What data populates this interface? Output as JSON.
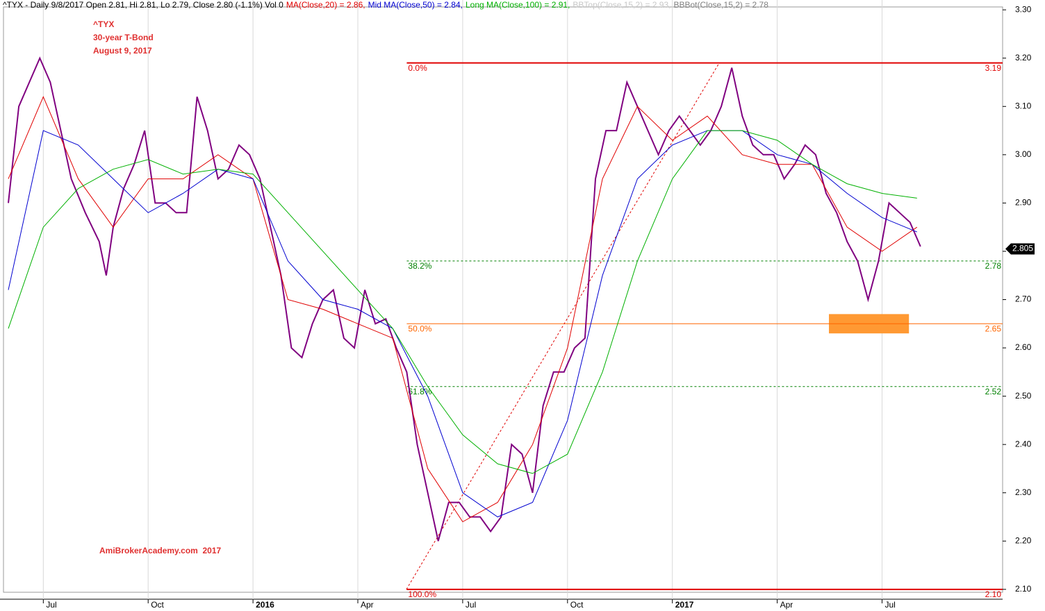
{
  "chart_data": {
    "type": "line",
    "header": [
      {
        "text": "^TYX - Daily 9/8/2017 Open 2.81, Hi 2.81, Lo 2.79, Close 2.80 (-1.1%) Vol 0",
        "color": "#000000"
      },
      {
        "text": "MA(Close,20) = 2.86,",
        "color": "#e00000"
      },
      {
        "text": "Mid MA(Close,50) = 2.84,",
        "color": "#0000d0"
      },
      {
        "text": "Long MA(Close,100) = 2.91,",
        "color": "#00b000"
      },
      {
        "text": "BBTop(Close,15,2) = 2.93,",
        "color": "#c8c8c8"
      },
      {
        "text": "BBBot(Close,15,2) = 2.78",
        "color": "#808080"
      }
    ],
    "annotations": [
      "^TYX",
      "30-year T-Bond",
      "August 9, 2017"
    ],
    "watermark": "AmiBrokerAcademy.com  2017",
    "xlim": [
      -0.14,
      28.45
    ],
    "xticks": [
      {
        "value": 1,
        "label": "Jul"
      },
      {
        "value": 4,
        "label": "Oct"
      },
      {
        "value": 7,
        "label": "2016"
      },
      {
        "value": 10,
        "label": "Apr"
      },
      {
        "value": 13,
        "label": "Jul"
      },
      {
        "value": 16,
        "label": "Oct"
      },
      {
        "value": 19,
        "label": "2017"
      },
      {
        "value": 22,
        "label": "Apr"
      },
      {
        "value": 25,
        "label": "Jul"
      }
    ],
    "ylim": [
      2.094,
      3.306
    ],
    "yticks": [
      {
        "value": 2.1,
        "label": "2.10"
      },
      {
        "value": 2.2,
        "label": "2.20"
      },
      {
        "value": 2.3,
        "label": "2.30"
      },
      {
        "value": 2.4,
        "label": "2.40"
      },
      {
        "value": 2.5,
        "label": "2.50"
      },
      {
        "value": 2.6,
        "label": "2.60"
      },
      {
        "value": 2.7,
        "label": "2.70"
      },
      {
        "value": 2.8,
        "label": "2.80"
      },
      {
        "value": 2.9,
        "label": "2.90"
      },
      {
        "value": 3.0,
        "label": "3.00"
      },
      {
        "value": 3.1,
        "label": "3.10"
      },
      {
        "value": 3.2,
        "label": "3.20"
      },
      {
        "value": 3.3,
        "label": "3.30"
      }
    ],
    "grid": true,
    "series": [
      {
        "name": "Close",
        "color": "#800080",
        "x": [
          0,
          0.3,
          0.6,
          0.9,
          1.2,
          1.5,
          1.8,
          2.2,
          2.6,
          2.8,
          3.0,
          3.3,
          3.6,
          3.9,
          4.2,
          4.5,
          4.8,
          5.1,
          5.4,
          5.7,
          6.0,
          6.3,
          6.6,
          6.9,
          7.2,
          7.5,
          7.8,
          8.1,
          8.4,
          8.7,
          9.0,
          9.3,
          9.6,
          9.9,
          10.2,
          10.5,
          10.8,
          11.1,
          11.4,
          11.7,
          12.0,
          12.3,
          12.6,
          12.9,
          13.2,
          13.5,
          13.8,
          14.1,
          14.4,
          14.7,
          15.0,
          15.3,
          15.6,
          15.9,
          16.2,
          16.5,
          16.8,
          17.1,
          17.4,
          17.7,
          18.0,
          18.3,
          18.6,
          18.9,
          19.2,
          19.5,
          19.8,
          20.1,
          20.4,
          20.7,
          21.0,
          21.3,
          21.6,
          21.9,
          22.2,
          22.5,
          22.8,
          23.1,
          23.4,
          23.7,
          24.0,
          24.3,
          24.6,
          24.9,
          25.2,
          25.5,
          25.8,
          26.1
        ],
        "values": [
          2.9,
          3.1,
          3.15,
          3.2,
          3.15,
          3.05,
          2.95,
          2.88,
          2.82,
          2.75,
          2.85,
          2.93,
          2.98,
          3.05,
          2.9,
          2.9,
          2.88,
          2.88,
          3.12,
          3.05,
          2.95,
          2.97,
          3.02,
          3.0,
          2.95,
          2.85,
          2.75,
          2.6,
          2.58,
          2.65,
          2.7,
          2.72,
          2.62,
          2.6,
          2.72,
          2.65,
          2.66,
          2.6,
          2.55,
          2.4,
          2.3,
          2.2,
          2.28,
          2.28,
          2.25,
          2.25,
          2.22,
          2.25,
          2.4,
          2.38,
          2.3,
          2.48,
          2.55,
          2.55,
          2.6,
          2.62,
          2.95,
          3.05,
          3.05,
          3.15,
          3.1,
          3.05,
          3.0,
          3.05,
          3.08,
          3.05,
          3.02,
          3.05,
          3.1,
          3.18,
          3.08,
          3.02,
          3.0,
          3.0,
          2.95,
          2.98,
          3.02,
          3.0,
          2.92,
          2.88,
          2.82,
          2.78,
          2.7,
          2.78,
          2.9,
          2.88,
          2.86,
          2.81
        ]
      },
      {
        "name": "MA(Close,20)",
        "color": "#e00000",
        "x": [
          0,
          1,
          2,
          3,
          4,
          5,
          6,
          7,
          8,
          9,
          10,
          11,
          12,
          13,
          14,
          15,
          16,
          17,
          18,
          19,
          20,
          21,
          22,
          23,
          24,
          25,
          26
        ],
        "values": [
          2.95,
          3.12,
          2.95,
          2.85,
          2.95,
          2.95,
          3.0,
          2.95,
          2.7,
          2.68,
          2.65,
          2.62,
          2.35,
          2.24,
          2.28,
          2.4,
          2.6,
          2.95,
          3.1,
          3.03,
          3.08,
          3.0,
          2.98,
          2.98,
          2.85,
          2.8,
          2.85
        ]
      },
      {
        "name": "Mid MA(Close,50)",
        "color": "#0000d0",
        "x": [
          0,
          1,
          2,
          3,
          4,
          5,
          6,
          7,
          8,
          9,
          10,
          11,
          12,
          13,
          14,
          15,
          16,
          17,
          18,
          19,
          20,
          21,
          22,
          23,
          24,
          25,
          26
        ],
        "values": [
          2.72,
          3.05,
          3.02,
          2.95,
          2.88,
          2.92,
          2.97,
          2.95,
          2.78,
          2.7,
          2.68,
          2.64,
          2.5,
          2.3,
          2.25,
          2.28,
          2.45,
          2.75,
          2.95,
          3.02,
          3.05,
          3.05,
          3.0,
          2.98,
          2.92,
          2.87,
          2.84
        ]
      },
      {
        "name": "Long MA(Close,100)",
        "color": "#00b000",
        "x": [
          0,
          1,
          2,
          3,
          4,
          5,
          6,
          7,
          8,
          9,
          10,
          11,
          12,
          13,
          14,
          15,
          16,
          17,
          18,
          19,
          20,
          21,
          22,
          23,
          24,
          25,
          26
        ],
        "values": [
          2.64,
          2.85,
          2.93,
          2.97,
          2.99,
          2.96,
          2.97,
          2.96,
          2.88,
          2.8,
          2.72,
          2.64,
          2.52,
          2.42,
          2.36,
          2.34,
          2.38,
          2.55,
          2.78,
          2.95,
          3.05,
          3.05,
          3.03,
          2.98,
          2.94,
          2.92,
          2.91
        ]
      }
    ],
    "fib": {
      "start_x": 11.4,
      "labels": [
        "0.0%",
        "38.2%",
        "50.0%",
        "61.8%",
        "100.0%"
      ],
      "values": [
        3.19,
        2.78,
        2.65,
        2.52,
        2.1
      ],
      "value_labels": [
        "3.19",
        "2.78",
        "2.65",
        "2.52",
        "2.10"
      ],
      "colors": [
        "#e00000",
        "#008000",
        "#ff6600",
        "#008000",
        "#e00000"
      ]
    },
    "trendline": {
      "x": [
        11.39,
        20.34
      ],
      "y": [
        2.1,
        3.19
      ],
      "color": "#e00000"
    },
    "highlight": {
      "x": [
        23.48,
        25.77
      ],
      "y": [
        2.63,
        2.67
      ],
      "color": "#ff9933"
    },
    "last_price": 2.805
  }
}
